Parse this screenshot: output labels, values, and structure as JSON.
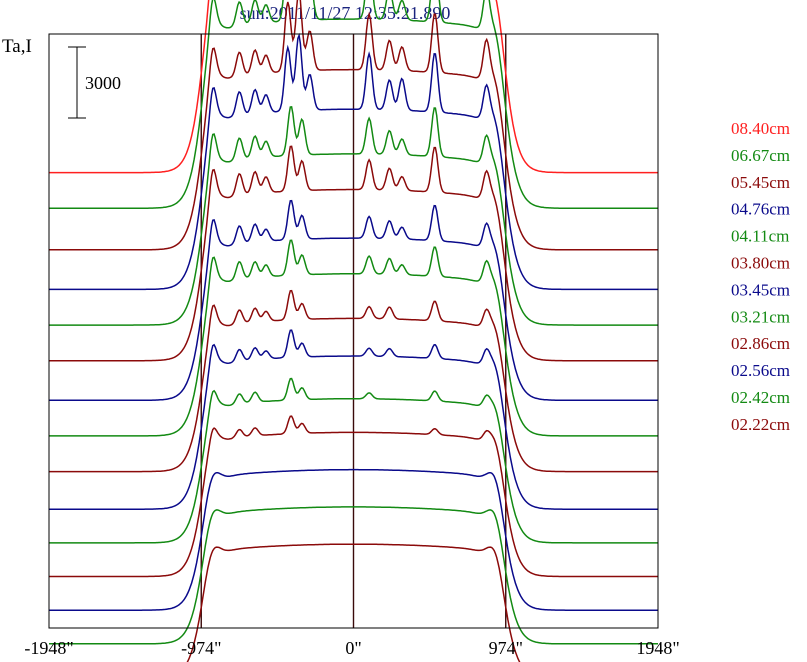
{
  "chart_data": {
    "type": "line",
    "title": "sun:2011/11/27 12:35:21.890",
    "ylabel": "Ta,I",
    "scale_bar_label": "3000",
    "scale_bar_value": 3000,
    "x_ticks": [
      {
        "value": -1948,
        "label": "-1948\""
      },
      {
        "value": -974,
        "label": "-974\""
      },
      {
        "value": 0,
        "label": "0\""
      },
      {
        "value": 974,
        "label": "974\""
      },
      {
        "value": 1948,
        "label": "1948\""
      }
    ],
    "xlim": [
      -1948,
      1948
    ],
    "ylim": [
      0,
      30000
    ],
    "vertical_lines": [
      -974,
      0,
      974
    ],
    "legend_position": "right",
    "colors": {
      "red": "#ff2020",
      "green": "#138a13",
      "maroon": "#8b0a0a",
      "blue": "#0a0a8b",
      "frame": "#000000",
      "vline": "#3a0a0a"
    },
    "series": [
      {
        "name": "08.40cm",
        "color": "#ff2020",
        "offset": 23000,
        "disk": 10500,
        "peaks": [
          [
            -900,
            1500
          ],
          [
            -730,
            1200
          ],
          [
            -630,
            1500
          ],
          [
            -560,
            1200
          ],
          [
            -400,
            5000
          ],
          [
            -330,
            2000
          ],
          [
            20,
            1000
          ],
          [
            110,
            2800
          ],
          [
            230,
            1500
          ],
          [
            310,
            900
          ],
          [
            520,
            2500
          ],
          [
            850,
            1800
          ]
        ]
      },
      {
        "name": "06.67cm",
        "color": "#138a13",
        "offset": 21200,
        "disk": 10500,
        "peaks": [
          [
            -900,
            1500
          ],
          [
            -730,
            1200
          ],
          [
            -630,
            1200
          ],
          [
            -560,
            900
          ],
          [
            -420,
            3500
          ],
          [
            -350,
            4200
          ],
          [
            -280,
            2200
          ],
          [
            100,
            2800
          ],
          [
            230,
            1500
          ],
          [
            310,
            1000
          ],
          [
            520,
            3200
          ],
          [
            850,
            1800
          ]
        ]
      },
      {
        "name": "05.45cm",
        "color": "#8b0a0a",
        "offset": 19100,
        "disk": 10000,
        "peaks": [
          [
            -900,
            1500
          ],
          [
            -730,
            1200
          ],
          [
            -630,
            1200
          ],
          [
            -560,
            900
          ],
          [
            -420,
            3500
          ],
          [
            -350,
            4000
          ],
          [
            -280,
            2000
          ],
          [
            100,
            2800
          ],
          [
            230,
            1500
          ],
          [
            310,
            1200
          ],
          [
            520,
            3000
          ],
          [
            850,
            1800
          ]
        ]
      },
      {
        "name": "04.76cm",
        "color": "#0a0a8b",
        "offset": 17100,
        "disk": 10000,
        "peaks": [
          [
            -900,
            1500
          ],
          [
            -730,
            1200
          ],
          [
            -630,
            1200
          ],
          [
            -560,
            900
          ],
          [
            -420,
            3200
          ],
          [
            -350,
            3800
          ],
          [
            -280,
            1800
          ],
          [
            100,
            2800
          ],
          [
            230,
            1500
          ],
          [
            310,
            1600
          ],
          [
            520,
            3000
          ],
          [
            850,
            1500
          ]
        ]
      },
      {
        "name": "04.11cm",
        "color": "#138a13",
        "offset": 15300,
        "disk": 9500,
        "peaks": [
          [
            -900,
            1400
          ],
          [
            -730,
            1100
          ],
          [
            -630,
            1100
          ],
          [
            -560,
            800
          ],
          [
            -400,
            2500
          ],
          [
            -330,
            1800
          ],
          [
            100,
            1800
          ],
          [
            230,
            1200
          ],
          [
            310,
            800
          ],
          [
            520,
            2500
          ],
          [
            850,
            1200
          ]
        ]
      },
      {
        "name": "03.80cm",
        "color": "#8b0a0a",
        "offset": 13500,
        "disk": 9500,
        "peaks": [
          [
            -900,
            1400
          ],
          [
            -730,
            1100
          ],
          [
            -630,
            1100
          ],
          [
            -560,
            800
          ],
          [
            -400,
            2300
          ],
          [
            -330,
            1500
          ],
          [
            100,
            1500
          ],
          [
            230,
            1100
          ],
          [
            310,
            700
          ],
          [
            520,
            2300
          ],
          [
            850,
            1200
          ]
        ]
      },
      {
        "name": "03.45cm",
        "color": "#0a0a8b",
        "offset": 11500,
        "disk": 9000,
        "peaks": [
          [
            -900,
            1300
          ],
          [
            -730,
            900
          ],
          [
            -630,
            900
          ],
          [
            -560,
            600
          ],
          [
            -400,
            2000
          ],
          [
            -330,
            1200
          ],
          [
            100,
            1100
          ],
          [
            230,
            900
          ],
          [
            310,
            600
          ],
          [
            520,
            1800
          ],
          [
            850,
            1000
          ]
        ]
      },
      {
        "name": "03.21cm",
        "color": "#138a13",
        "offset": 9700,
        "disk": 9000,
        "peaks": [
          [
            -900,
            1200
          ],
          [
            -730,
            900
          ],
          [
            -630,
            800
          ],
          [
            -560,
            600
          ],
          [
            -400,
            1800
          ],
          [
            -330,
            1000
          ],
          [
            100,
            900
          ],
          [
            230,
            800
          ],
          [
            310,
            500
          ],
          [
            520,
            1500
          ],
          [
            850,
            900
          ]
        ]
      },
      {
        "name": "02.86cm",
        "color": "#8b0a0a",
        "offset": 7900,
        "disk": 8500,
        "peaks": [
          [
            -900,
            1000
          ],
          [
            -730,
            700
          ],
          [
            -630,
            700
          ],
          [
            -560,
            500
          ],
          [
            -400,
            1500
          ],
          [
            -330,
            800
          ],
          [
            100,
            600
          ],
          [
            230,
            600
          ],
          [
            520,
            1000
          ],
          [
            850,
            700
          ]
        ]
      },
      {
        "name": "02.56cm",
        "color": "#0a0a8b",
        "offset": 6000,
        "disk": 8500,
        "peaks": [
          [
            -900,
            900
          ],
          [
            -730,
            600
          ],
          [
            -630,
            600
          ],
          [
            -560,
            400
          ],
          [
            -400,
            1400
          ],
          [
            -330,
            700
          ],
          [
            100,
            400
          ],
          [
            230,
            400
          ],
          [
            520,
            700
          ],
          [
            850,
            600
          ]
        ]
      },
      {
        "name": "02.42cm",
        "color": "#138a13",
        "offset": 4300,
        "disk": 8000,
        "peaks": [
          [
            -900,
            700
          ],
          [
            -730,
            500
          ],
          [
            -630,
            500
          ],
          [
            -400,
            1100
          ],
          [
            -330,
            600
          ],
          [
            100,
            300
          ],
          [
            520,
            500
          ],
          [
            850,
            400
          ]
        ]
      },
      {
        "name": "02.22cm",
        "color": "#8b0a0a",
        "offset": 2600,
        "disk": 8000,
        "peaks": [
          [
            -900,
            500
          ],
          [
            -730,
            400
          ],
          [
            -630,
            400
          ],
          [
            -400,
            900
          ],
          [
            -330,
            500
          ],
          [
            520,
            300
          ],
          [
            850,
            300
          ]
        ]
      }
    ],
    "extra_traces": [
      {
        "color": "#0a0a8b",
        "offset": 900,
        "disk": 7800,
        "peaks": []
      },
      {
        "color": "#138a13",
        "offset": -800,
        "disk": 7600,
        "peaks": []
      },
      {
        "color": "#8b0a0a",
        "offset": -2500,
        "disk": 7400,
        "peaks": []
      }
    ]
  }
}
